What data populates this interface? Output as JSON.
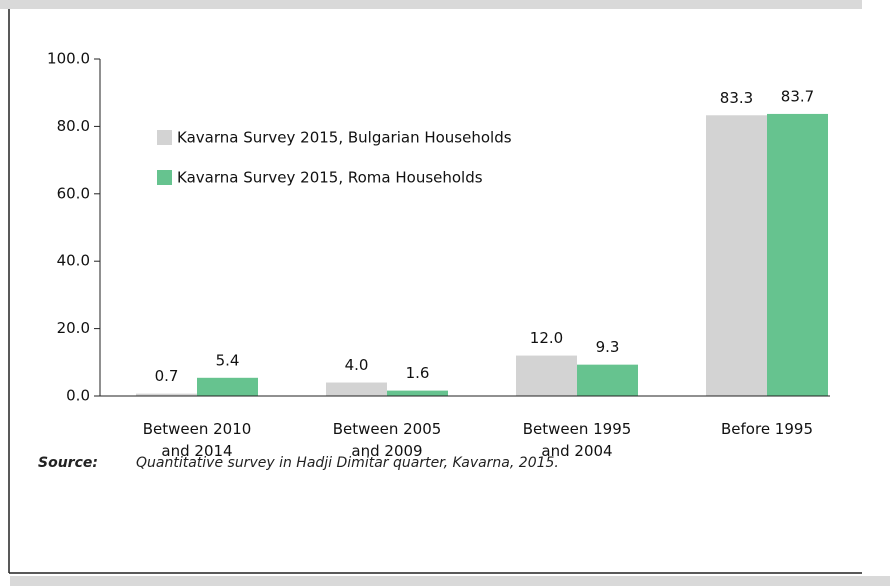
{
  "chart_data": {
    "type": "bar",
    "categories": [
      "Between 2010\nand 2014",
      "Between 2005\nand 2009",
      "Between 1995\nand 2004",
      "Before 1995"
    ],
    "series": [
      {
        "name": "Kavarna Survey 2015, Bulgarian Households",
        "color": "#d3d3d3",
        "values": [
          0.7,
          4.0,
          12.0,
          83.3
        ],
        "value_labels": [
          "0.7",
          "4.0",
          "12.0",
          "83.3"
        ]
      },
      {
        "name": "Kavarna Survey 2015, Roma Households",
        "color": "#66c38f",
        "values": [
          5.4,
          1.6,
          9.3,
          83.7
        ],
        "value_labels": [
          "5.4",
          "1.6",
          "9.3",
          "83.7"
        ]
      }
    ],
    "ylim": [
      0,
      100
    ],
    "yticks": [
      {
        "value": 0,
        "label": "0.0"
      },
      {
        "value": 20,
        "label": "20.0"
      },
      {
        "value": 40,
        "label": "40.0"
      },
      {
        "value": 60,
        "label": "60.0"
      },
      {
        "value": 80,
        "label": "80.0"
      },
      {
        "value": 100,
        "label": "100.0"
      }
    ],
    "legend": "upper left",
    "source_label": "Source:",
    "source": "Quantitative survey in Hadji Dimitar quarter, Kavarna, 2015."
  }
}
